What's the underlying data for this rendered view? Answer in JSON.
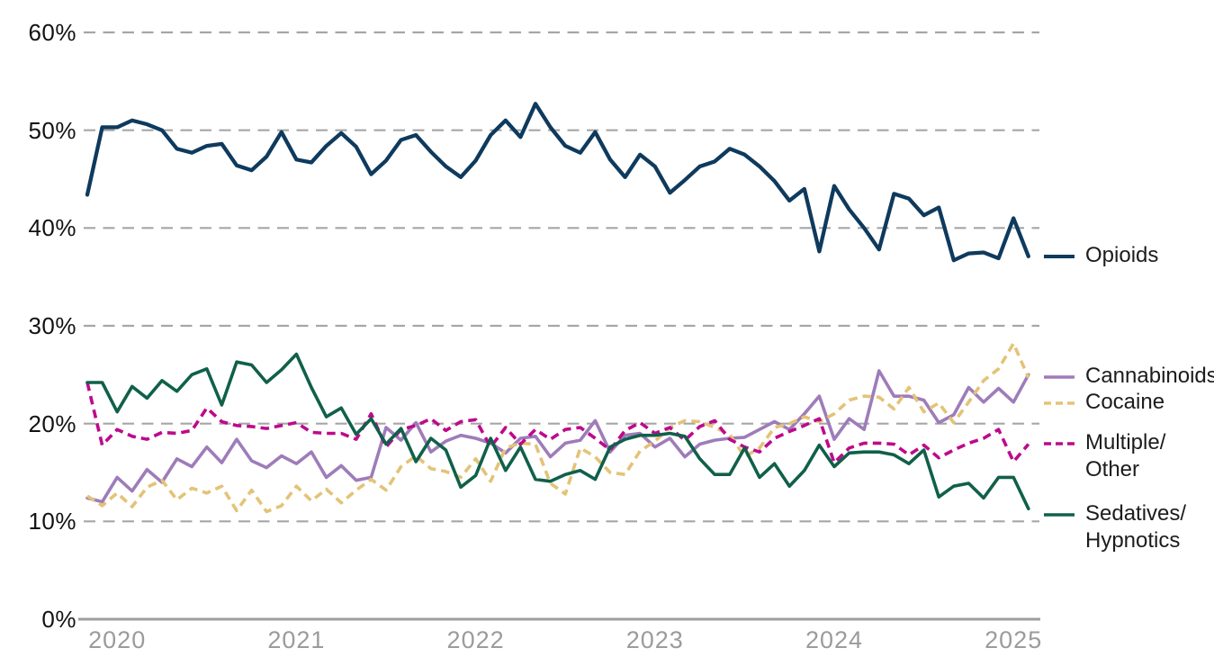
{
  "chart_data": {
    "type": "line",
    "title": "",
    "x_unit": "month",
    "x_start": "2019-11",
    "points_per_series": 64,
    "x_axis": {
      "tick_labels": [
        "2020",
        "2021",
        "2022",
        "2023",
        "2024",
        "2025"
      ]
    },
    "y_axis": {
      "tick_labels": [
        "0%",
        "10%",
        "20%",
        "30%",
        "40%",
        "50%",
        "60%"
      ],
      "tick_values": [
        0,
        10,
        20,
        30,
        40,
        50,
        60
      ],
      "min": 0,
      "max": 60,
      "unit": "%"
    },
    "grid": "dashed horizontal gridlines, solid baseline at 0%",
    "legend_position": "right",
    "colors": {
      "grid": "#a6a6a6",
      "axis_baseline": "#9e9e9e",
      "y_label_text": "#121212",
      "x_label_text": "#9b9b9b",
      "legend_text": "#1c1c1c"
    },
    "series": [
      {
        "id": "opioids",
        "name": "Opioids",
        "legend_lines": [
          "Opioids"
        ],
        "color": "#0e3a5d",
        "line_style": "solid",
        "values": [
          43.4,
          50.3,
          50.3,
          51.0,
          50.6,
          50.0,
          48.1,
          47.7,
          48.4,
          48.6,
          46.4,
          45.9,
          47.3,
          49.8,
          47.0,
          46.7,
          48.4,
          49.7,
          48.3,
          45.5,
          46.9,
          49.0,
          49.5,
          47.8,
          46.3,
          45.2,
          46.9,
          49.5,
          51.0,
          49.3,
          52.7,
          50.3,
          48.4,
          47.7,
          49.8,
          47.0,
          45.2,
          47.5,
          46.3,
          43.6,
          44.9,
          46.3,
          46.8,
          48.1,
          47.5,
          46.3,
          44.8,
          42.8,
          44.0,
          37.6,
          44.3,
          41.9,
          40.0,
          37.8,
          43.5,
          43.0,
          41.3,
          42.1,
          36.7,
          37.4,
          37.5,
          36.9,
          41.0,
          37.1
        ]
      },
      {
        "id": "cannabinoids",
        "name": "Cannabinoids",
        "legend_lines": [
          "Cannabinoids"
        ],
        "color": "#9e7cb9",
        "line_style": "solid",
        "values": [
          12.4,
          12.0,
          14.5,
          13.1,
          15.3,
          14.0,
          16.4,
          15.6,
          17.6,
          16.0,
          18.4,
          16.2,
          15.5,
          16.7,
          15.9,
          17.1,
          14.5,
          15.7,
          14.2,
          14.5,
          19.6,
          18.3,
          20.1,
          17.1,
          18.2,
          18.8,
          18.5,
          18.0,
          17.0,
          18.5,
          18.7,
          16.6,
          18.0,
          18.3,
          20.3,
          17.1,
          18.8,
          19.0,
          17.6,
          18.5,
          16.6,
          17.9,
          18.3,
          18.5,
          18.6,
          19.4,
          20.2,
          19.4,
          21.0,
          22.8,
          18.4,
          20.5,
          19.4,
          25.4,
          22.8,
          22.8,
          22.4,
          20.1,
          20.9,
          23.7,
          22.2,
          23.6,
          22.2,
          25.0
        ]
      },
      {
        "id": "cocaine",
        "name": "Cocaine",
        "legend_lines": [
          "Cocaine"
        ],
        "color": "#e3c377",
        "line_style": "dashed",
        "values": [
          12.6,
          11.6,
          12.9,
          11.5,
          13.5,
          14.2,
          12.2,
          13.4,
          12.9,
          13.6,
          11.1,
          13.2,
          11.0,
          11.6,
          13.6,
          12.1,
          13.3,
          11.9,
          13.2,
          14.3,
          13.2,
          15.6,
          16.7,
          15.4,
          15.1,
          14.5,
          16.4,
          14.1,
          17.5,
          18.0,
          17.9,
          13.9,
          12.8,
          17.5,
          16.6,
          15.0,
          14.8,
          17.2,
          18.2,
          19.6,
          20.3,
          20.2,
          19.6,
          18.9,
          16.6,
          17.5,
          19.6,
          20.0,
          20.7,
          20.2,
          21.0,
          22.4,
          22.8,
          22.7,
          21.5,
          23.7,
          21.2,
          22.1,
          20.1,
          22.2,
          24.4,
          25.6,
          28.2,
          24.7
        ]
      },
      {
        "id": "multiple-other",
        "name": "Multiple/Other",
        "legend_lines": [
          "Multiple/",
          "Other"
        ],
        "color": "#bd0a8c",
        "line_style": "dashed",
        "values": [
          24.2,
          17.8,
          19.4,
          18.7,
          18.4,
          19.1,
          19.0,
          19.3,
          21.6,
          20.2,
          19.8,
          19.7,
          19.5,
          19.8,
          20.1,
          19.1,
          19.0,
          19.0,
          18.4,
          21.0,
          17.6,
          19.4,
          19.8,
          20.5,
          19.3,
          20.2,
          20.4,
          17.6,
          19.6,
          17.9,
          19.4,
          18.4,
          19.4,
          19.6,
          18.5,
          17.3,
          19.3,
          20.1,
          19.0,
          19.6,
          18.3,
          19.7,
          20.3,
          18.4,
          17.6,
          17.1,
          18.5,
          19.2,
          19.8,
          20.5,
          16.0,
          17.5,
          18.0,
          18.0,
          17.9,
          16.8,
          17.8,
          16.5,
          17.3,
          18.0,
          18.5,
          19.4,
          16.1,
          17.9
        ]
      },
      {
        "id": "sedatives-hypnotics",
        "name": "Sedatives/Hypnotics",
        "legend_lines": [
          "Sedatives/",
          "Hypnotics"
        ],
        "color": "#10604a",
        "line_style": "solid",
        "values": [
          24.2,
          24.2,
          21.2,
          23.8,
          22.6,
          24.4,
          23.3,
          25.0,
          25.6,
          21.9,
          26.3,
          26.0,
          24.2,
          25.5,
          27.1,
          23.7,
          20.7,
          21.6,
          18.9,
          20.5,
          17.9,
          19.5,
          16.1,
          18.5,
          17.3,
          13.5,
          14.7,
          18.5,
          15.2,
          17.6,
          14.3,
          14.1,
          14.8,
          15.2,
          14.3,
          17.6,
          18.4,
          18.8,
          18.8,
          19.0,
          18.7,
          16.4,
          14.8,
          14.8,
          17.5,
          14.5,
          15.9,
          13.6,
          15.2,
          17.8,
          15.6,
          17.0,
          17.1,
          17.1,
          16.8,
          15.9,
          17.3,
          12.5,
          13.6,
          13.9,
          12.4,
          14.5,
          14.5,
          11.3
        ]
      }
    ]
  }
}
